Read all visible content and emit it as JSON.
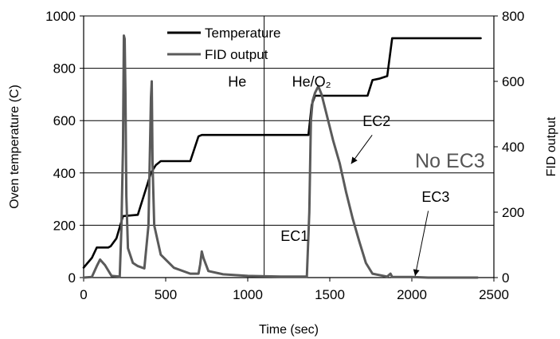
{
  "chart_data": {
    "type": "line",
    "title": "",
    "xlabel": "Time (sec)",
    "ylabel": "Oven temperature (C)",
    "y2label": "FID output",
    "xlim": [
      0,
      2500
    ],
    "ylim": [
      0,
      1000
    ],
    "y2lim": [
      0,
      800
    ],
    "x_ticks": [
      "0",
      "500",
      "1000",
      "1500",
      "2000",
      "2500"
    ],
    "y_ticks": [
      "0",
      "200",
      "400",
      "600",
      "800",
      "1000"
    ],
    "y2_ticks": [
      "0",
      "200",
      "400",
      "600",
      "800"
    ],
    "grid": "horizontal",
    "legend": "top-left",
    "series": [
      {
        "name": "Temperature",
        "axis": "left",
        "color": "#000000",
        "points": [
          [
            0,
            38
          ],
          [
            50,
            75
          ],
          [
            80,
            115
          ],
          [
            150,
            115
          ],
          [
            165,
            120
          ],
          [
            200,
            150
          ],
          [
            240,
            235
          ],
          [
            330,
            240
          ],
          [
            360,
            300
          ],
          [
            410,
            400
          ],
          [
            440,
            430
          ],
          [
            470,
            445
          ],
          [
            650,
            445
          ],
          [
            700,
            540
          ],
          [
            720,
            545
          ],
          [
            1370,
            545
          ],
          [
            1390,
            660
          ],
          [
            1410,
            695
          ],
          [
            1730,
            695
          ],
          [
            1760,
            755
          ],
          [
            1800,
            760
          ],
          [
            1850,
            770
          ],
          [
            1880,
            915
          ],
          [
            2420,
            915
          ]
        ]
      },
      {
        "name": "FID output",
        "axis": "right",
        "color": "#5a5a5a",
        "points": [
          [
            0,
            0
          ],
          [
            50,
            2
          ],
          [
            80,
            35
          ],
          [
            100,
            55
          ],
          [
            130,
            38
          ],
          [
            170,
            5
          ],
          [
            220,
            3
          ],
          [
            230,
            150
          ],
          [
            240,
            400
          ],
          [
            245,
            740
          ],
          [
            250,
            730
          ],
          [
            255,
            560
          ],
          [
            260,
            250
          ],
          [
            270,
            90
          ],
          [
            300,
            45
          ],
          [
            330,
            35
          ],
          [
            370,
            28
          ],
          [
            395,
            160
          ],
          [
            410,
            550
          ],
          [
            415,
            600
          ],
          [
            420,
            350
          ],
          [
            430,
            160
          ],
          [
            470,
            70
          ],
          [
            550,
            30
          ],
          [
            650,
            12
          ],
          [
            700,
            12
          ],
          [
            710,
            40
          ],
          [
            720,
            80
          ],
          [
            730,
            60
          ],
          [
            760,
            20
          ],
          [
            850,
            10
          ],
          [
            1000,
            5
          ],
          [
            1200,
            3
          ],
          [
            1360,
            3
          ],
          [
            1375,
            200
          ],
          [
            1385,
            480
          ],
          [
            1395,
            540
          ],
          [
            1410,
            565
          ],
          [
            1430,
            585
          ],
          [
            1450,
            560
          ],
          [
            1480,
            500
          ],
          [
            1520,
            420
          ],
          [
            1560,
            350
          ],
          [
            1600,
            260
          ],
          [
            1640,
            180
          ],
          [
            1680,
            110
          ],
          [
            1720,
            45
          ],
          [
            1760,
            12
          ],
          [
            1850,
            3
          ],
          [
            1870,
            12
          ],
          [
            1880,
            2
          ],
          [
            2000,
            2
          ],
          [
            2100,
            0
          ],
          [
            2400,
            0
          ]
        ]
      }
    ],
    "annotations": [
      {
        "text": "He",
        "x": 880,
        "y": 730
      },
      {
        "text": "He/O₂",
        "x": 1270,
        "y": 730
      },
      {
        "text": "EC1",
        "x": 1200,
        "y": 140
      },
      {
        "text": "EC2",
        "x": 1700,
        "y": 580
      },
      {
        "text": "No EC3",
        "x": 2020,
        "y": 420
      },
      {
        "text": "EC3",
        "x": 2060,
        "y": 290
      }
    ]
  }
}
